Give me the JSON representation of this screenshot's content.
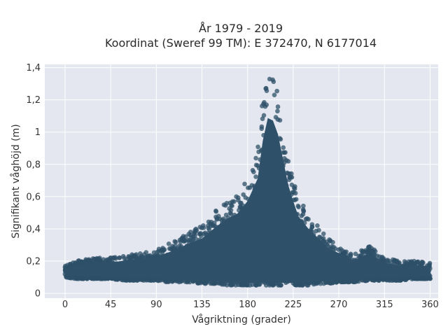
{
  "chart_data": {
    "type": "scatter",
    "title_lines": [
      "År 1979 - 2019",
      "Koordinat (Sweref 99 TM): E 372470, N 6177014"
    ],
    "xlabel": "Vågriktning (grader)",
    "ylabel": "Signifikant våghöjd (m)",
    "xlim": [
      -20,
      368
    ],
    "ylim": [
      -0.03,
      1.42
    ],
    "x_ticks": [
      0,
      45,
      90,
      135,
      180,
      225,
      270,
      315,
      360
    ],
    "y_ticks": [
      0,
      0.2,
      0.4,
      0.6,
      0.8,
      1,
      1.2,
      1.4
    ],
    "y_tick_labels": [
      "0",
      "0,2",
      "0,4",
      "0,6",
      "0,8",
      "1",
      "1,2",
      "1,4"
    ],
    "grid": true,
    "marker_color": "#2e5068",
    "background_color": "#e5e7f0",
    "envelope": {
      "x": [
        0,
        10,
        20,
        30,
        45,
        60,
        75,
        90,
        100,
        110,
        120,
        135,
        150,
        160,
        170,
        180,
        190,
        195,
        200,
        205,
        210,
        215,
        220,
        225,
        230,
        240,
        250,
        260,
        270,
        285,
        300,
        315,
        330,
        345,
        360
      ],
      "upper": [
        0.17,
        0.2,
        0.21,
        0.22,
        0.22,
        0.24,
        0.25,
        0.27,
        0.3,
        0.33,
        0.37,
        0.42,
        0.52,
        0.58,
        0.62,
        0.72,
        0.9,
        1.2,
        1.38,
        1.36,
        1.25,
        1.05,
        0.85,
        0.72,
        0.6,
        0.5,
        0.42,
        0.34,
        0.3,
        0.24,
        0.3,
        0.22,
        0.2,
        0.2,
        0.19
      ],
      "lower": [
        0.1,
        0.09,
        0.09,
        0.09,
        0.09,
        0.08,
        0.08,
        0.08,
        0.07,
        0.07,
        0.07,
        0.06,
        0.06,
        0.05,
        0.05,
        0.05,
        0.05,
        0.05,
        0.05,
        0.05,
        0.05,
        0.05,
        0.05,
        0.05,
        0.05,
        0.05,
        0.06,
        0.06,
        0.07,
        0.07,
        0.08,
        0.08,
        0.08,
        0.09,
        0.09
      ]
    }
  }
}
